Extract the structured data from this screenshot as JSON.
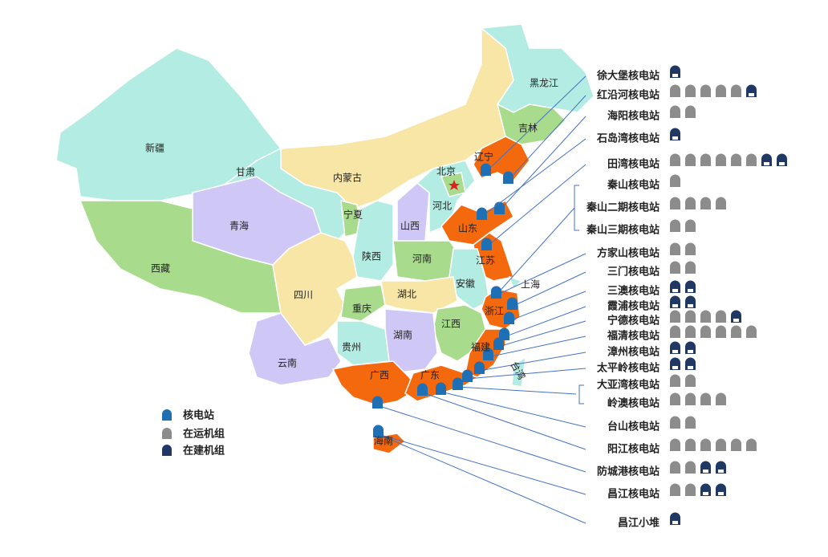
{
  "provinces": [
    "黑龙江",
    "吉林",
    "辽宁",
    "新疆",
    "甘肃",
    "内蒙古",
    "北京",
    "河北",
    "宁夏",
    "青海",
    "山西",
    "山东",
    "陕西",
    "河南",
    "江苏",
    "西藏",
    "安徽",
    "上海",
    "四川",
    "湖北",
    "重庆",
    "浙江",
    "江西",
    "湖南",
    "贵州",
    "福建",
    "台湾",
    "云南",
    "广西",
    "广东",
    "海南"
  ],
  "legend": {
    "station": "核电站",
    "operating": "在运机组",
    "construction": "在建机组"
  },
  "stations": [
    {
      "name": "徐大堡核电站",
      "operating": 0,
      "construction": 1
    },
    {
      "name": "红沿河核电站",
      "operating": 5,
      "construction": 1
    },
    {
      "name": "海阳核电站",
      "operating": 2,
      "construction": 0
    },
    {
      "name": "石岛湾核电站",
      "operating": 0,
      "construction": 1
    },
    {
      "name": "田湾核电站",
      "operating": 6,
      "construction": 2
    },
    {
      "name": "秦山核电站",
      "operating": 1,
      "construction": 0
    },
    {
      "name": "秦山二期核电站",
      "operating": 4,
      "construction": 0
    },
    {
      "name": "秦山三期核电站",
      "operating": 2,
      "construction": 0
    },
    {
      "name": "方家山核电站",
      "operating": 2,
      "construction": 0
    },
    {
      "name": "三门核电站",
      "operating": 2,
      "construction": 0
    },
    {
      "name": "三澳核电站",
      "operating": 0,
      "construction": 2
    },
    {
      "name": "霞浦核电站",
      "operating": 0,
      "construction": 2
    },
    {
      "name": "宁德核电站",
      "operating": 4,
      "construction": 1
    },
    {
      "name": "福清核电站",
      "operating": 6,
      "construction": 0
    },
    {
      "name": "漳州核电站",
      "operating": 0,
      "construction": 2
    },
    {
      "name": "太平岭核电站",
      "operating": 0,
      "construction": 2
    },
    {
      "name": "大亚湾核电站",
      "operating": 2,
      "construction": 0
    },
    {
      "name": "岭澳核电站",
      "operating": 4,
      "construction": 0
    },
    {
      "name": "台山核电站",
      "operating": 2,
      "construction": 0
    },
    {
      "name": "阳江核电站",
      "operating": 6,
      "construction": 0
    },
    {
      "name": "防城港核电站",
      "operating": 2,
      "construction": 2
    },
    {
      "name": "昌江核电站",
      "operating": 2,
      "construction": 2
    },
    {
      "name": "昌江小堆",
      "operating": 0,
      "construction": 1
    }
  ]
}
